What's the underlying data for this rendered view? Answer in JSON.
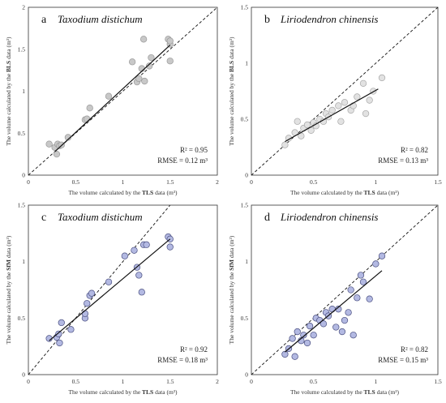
{
  "chart_data": [
    {
      "type": "scatter",
      "panel_letter": "a",
      "title": "Taxodium distichum",
      "xlabel": {
        "pre": "The volume calculated by the ",
        "bold": "TLS",
        "post": " data (m³)"
      },
      "ylabel": {
        "pre": "The volume calculated by the ",
        "bold": "BLS",
        "post": " data (m³)"
      },
      "xlim": [
        0,
        2
      ],
      "ylim": [
        0,
        2
      ],
      "xticks": [
        "0",
        "0.5",
        "1",
        "1.5",
        "2"
      ],
      "yticks": [
        "0",
        "0.5",
        "1",
        "1.5",
        "2"
      ],
      "stats": {
        "r2": "R² = 0.95",
        "rmse": "RMSE = 0.12 m³"
      },
      "marker_color": "#c8c8c8",
      "marker_edge": "#9a9a9a",
      "fit_line": {
        "x": [
          0.28,
          1.5
        ],
        "y": [
          0.28,
          1.55
        ]
      },
      "x": [
        0.22,
        0.28,
        0.3,
        0.31,
        0.33,
        0.35,
        0.42,
        0.6,
        0.62,
        0.65,
        0.85,
        1.1,
        1.15,
        1.17,
        1.2,
        1.22,
        1.23,
        1.28,
        1.3,
        1.48,
        1.5,
        1.5,
        1.5
      ],
      "y": [
        0.37,
        0.33,
        0.25,
        0.37,
        0.35,
        0.36,
        0.45,
        0.66,
        0.67,
        0.8,
        0.94,
        1.35,
        1.11,
        1.15,
        1.27,
        1.62,
        1.12,
        1.3,
        1.4,
        1.62,
        1.56,
        1.6,
        1.36
      ]
    },
    {
      "type": "scatter",
      "panel_letter": "b",
      "title": "Liriodendron chinensis",
      "xlabel": {
        "pre": "The volume calculated by the ",
        "bold": "TLS",
        "post": " data (m³)"
      },
      "ylabel": {
        "pre": "The volume calculated by the ",
        "bold": "BLS",
        "post": " data (m³)"
      },
      "xlim": [
        0,
        1.5
      ],
      "ylim": [
        0,
        1.5
      ],
      "xticks": [
        "0",
        "0.5",
        "1",
        "1.5"
      ],
      "yticks": [
        "0",
        "0.5",
        "1",
        "1.5"
      ],
      "stats": {
        "r2": "R² = 0.82",
        "rmse": "RMSE = 0.13 m³"
      },
      "marker_color": "#e2e2e2",
      "marker_edge": "#a8a8a8",
      "fit_line": {
        "x": [
          0.27,
          1.02
        ],
        "y": [
          0.3,
          0.77
        ]
      },
      "x": [
        0.27,
        0.3,
        0.35,
        0.37,
        0.4,
        0.42,
        0.45,
        0.48,
        0.5,
        0.52,
        0.55,
        0.58,
        0.6,
        0.62,
        0.65,
        0.7,
        0.72,
        0.75,
        0.8,
        0.82,
        0.85,
        0.9,
        0.92,
        0.95,
        0.98,
        1.05
      ],
      "y": [
        0.27,
        0.33,
        0.38,
        0.48,
        0.35,
        0.42,
        0.45,
        0.4,
        0.47,
        0.44,
        0.5,
        0.48,
        0.55,
        0.52,
        0.58,
        0.62,
        0.48,
        0.65,
        0.58,
        0.62,
        0.7,
        0.82,
        0.55,
        0.67,
        0.75,
        0.87
      ]
    },
    {
      "type": "scatter",
      "panel_letter": "c",
      "title": "Taxodium distichum",
      "xlabel": {
        "pre": "The volume calculated by the ",
        "bold": "TLS",
        "post": " data (m³)"
      },
      "ylabel": {
        "pre": "The volume calculated by the ",
        "bold": "SfM",
        "post": " data (m³)"
      },
      "xlim": [
        0,
        2
      ],
      "ylim": [
        0,
        1.5
      ],
      "xticks": [
        "0",
        "0.5",
        "1",
        "1.5",
        "2"
      ],
      "yticks": [
        "0",
        "0.5",
        "1",
        "1.5"
      ],
      "stats": {
        "r2": "R² = 0.92",
        "rmse": "RMSE = 0.18 m³"
      },
      "marker_color": "#b3b9e2",
      "marker_edge": "#4a4f80",
      "fit_line": {
        "x": [
          0.22,
          1.5
        ],
        "y": [
          0.3,
          1.2
        ]
      },
      "x": [
        0.22,
        0.3,
        0.32,
        0.33,
        0.35,
        0.45,
        0.6,
        0.6,
        0.62,
        0.65,
        0.67,
        0.85,
        1.02,
        1.12,
        1.15,
        1.17,
        1.2,
        1.22,
        1.25,
        1.48,
        1.5,
        1.5
      ],
      "y": [
        0.32,
        0.33,
        0.36,
        0.28,
        0.46,
        0.4,
        0.5,
        0.54,
        0.63,
        0.7,
        0.72,
        0.82,
        1.05,
        1.1,
        0.95,
        0.88,
        0.73,
        1.15,
        1.15,
        1.22,
        1.2,
        1.13
      ]
    },
    {
      "type": "scatter",
      "panel_letter": "d",
      "title": "Liriodendron chinensis",
      "xlabel": {
        "pre": "The volume calculated by the ",
        "bold": "TLS",
        "post": " data (m³)"
      },
      "ylabel": {
        "pre": "The volume calculated by the ",
        "bold": "SfM",
        "post": " data (m³)"
      },
      "xlim": [
        0,
        1.5
      ],
      "ylim": [
        0,
        1.5
      ],
      "xticks": [
        "0",
        "0.5",
        "1",
        "1.5"
      ],
      "yticks": [
        "0",
        "0.5",
        "1",
        "1.5"
      ],
      "stats": {
        "r2": "R² = 0.82",
        "rmse": "RMSE = 0.15 m³"
      },
      "marker_color": "#b3b9e2",
      "marker_edge": "#4a4f80",
      "fit_line": {
        "x": [
          0.27,
          1.05
        ],
        "y": [
          0.2,
          0.92
        ]
      },
      "x": [
        0.27,
        0.3,
        0.33,
        0.35,
        0.37,
        0.4,
        0.42,
        0.45,
        0.47,
        0.5,
        0.52,
        0.55,
        0.58,
        0.6,
        0.62,
        0.65,
        0.68,
        0.7,
        0.73,
        0.75,
        0.78,
        0.8,
        0.82,
        0.85,
        0.88,
        0.9,
        0.95,
        1.0,
        1.05
      ],
      "y": [
        0.18,
        0.23,
        0.32,
        0.16,
        0.38,
        0.3,
        0.35,
        0.28,
        0.43,
        0.35,
        0.5,
        0.48,
        0.45,
        0.55,
        0.52,
        0.58,
        0.42,
        0.58,
        0.38,
        0.48,
        0.55,
        0.75,
        0.35,
        0.68,
        0.88,
        0.82,
        0.67,
        0.98,
        1.05
      ]
    }
  ]
}
